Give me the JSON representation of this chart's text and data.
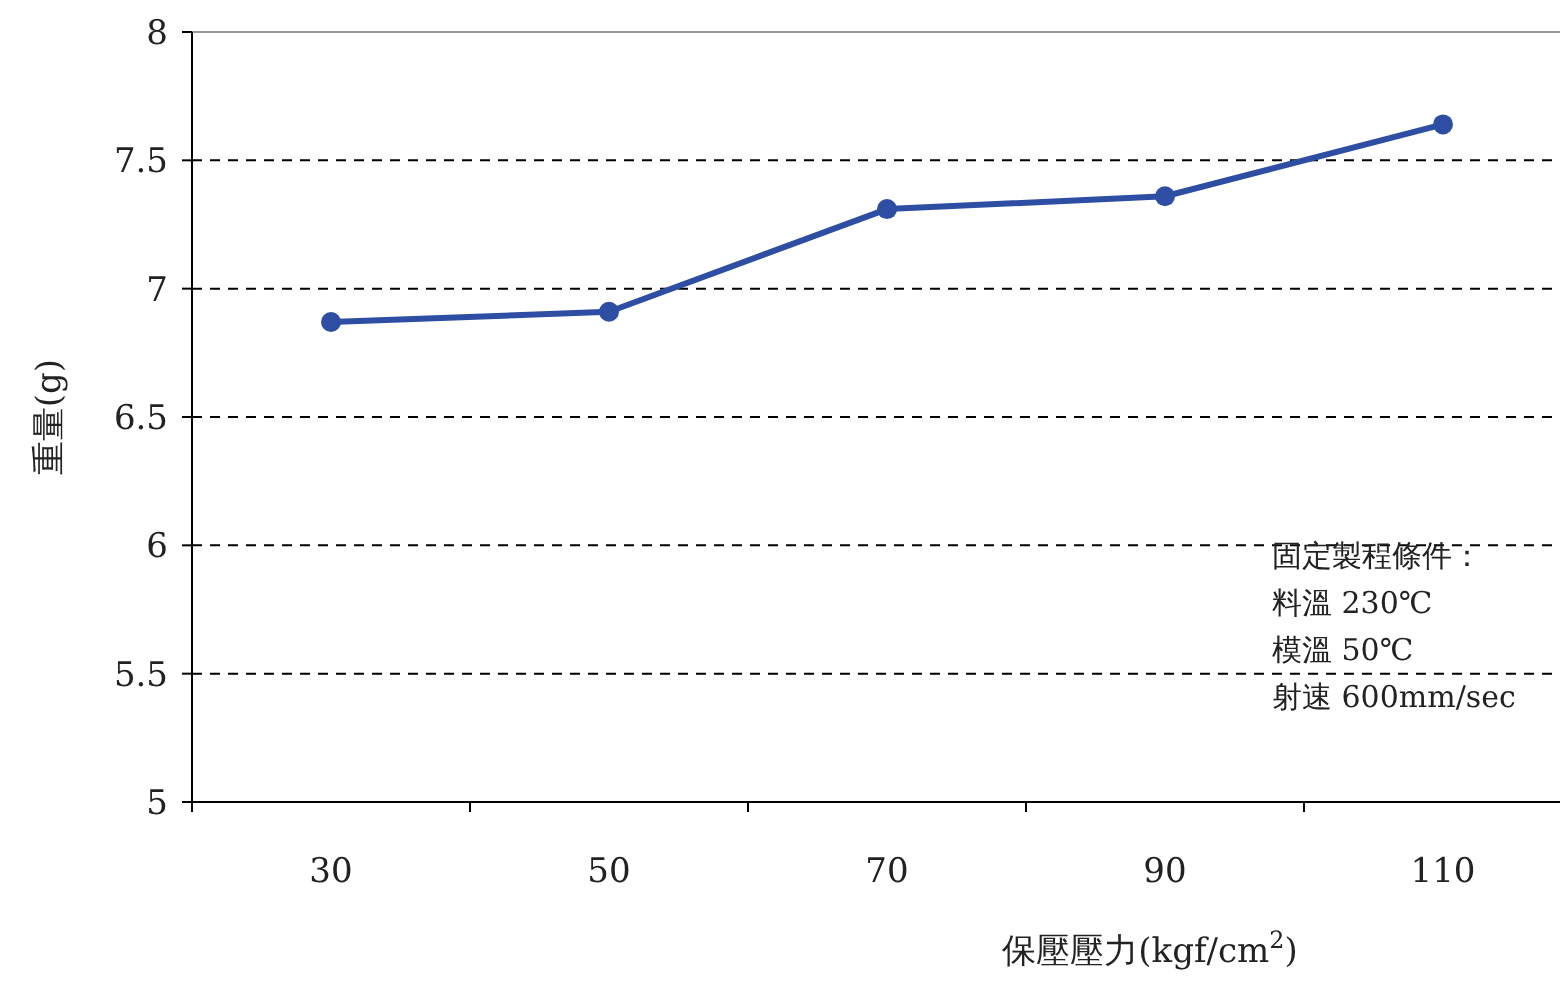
{
  "chart_data": {
    "type": "line",
    "xlabel": "保壓壓力(kgf/cm$^{2}$)",
    "ylabel": "重量(g)",
    "categories": [
      "30",
      "50",
      "70",
      "90",
      "110"
    ],
    "series": [
      {
        "color": "#2e4ea3",
        "values": [
          6.87,
          6.91,
          7.31,
          7.36,
          7.64
        ]
      }
    ],
    "ylim": [
      5,
      8
    ],
    "yticks": [
      5,
      5.5,
      6,
      6.5,
      7,
      7.5,
      8
    ],
    "grid": "y",
    "marker": "circle",
    "line_style": "solid",
    "annotations": [
      "固定製程條件：",
      "料溫 230℃",
      "模溫 50℃",
      "射速 600mm/sec"
    ]
  }
}
